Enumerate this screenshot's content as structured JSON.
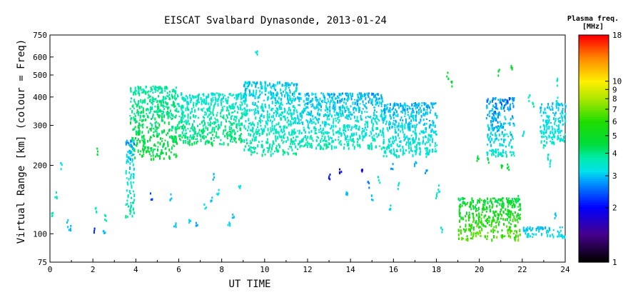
{
  "chart_data": {
    "type": "scatter",
    "title": "EISCAT Svalbard Dynasonde, 2013-01-24",
    "xlabel": "UT TIME",
    "ylabel": "Virtual Range [km] (colour = Freq)",
    "xlim": [
      0,
      24
    ],
    "ylim": [
      75,
      750
    ],
    "y_scale": "log",
    "x_ticks": [
      0,
      2,
      4,
      6,
      8,
      10,
      12,
      14,
      16,
      18,
      20,
      22,
      24
    ],
    "x_tick_labels": [
      "0",
      "2",
      "4",
      "6",
      "8",
      "10",
      "12",
      "14",
      "16",
      "18",
      "20",
      "22",
      "24"
    ],
    "y_ticks": [
      75,
      100,
      200,
      300,
      400,
      500,
      600,
      750
    ],
    "y_tick_labels": [
      "75",
      "100",
      "200",
      "300",
      "400",
      "500",
      "600",
      "750"
    ],
    "colorbar": {
      "title_line1": "Plasma freq.",
      "title_line2": "[MHz]",
      "scale": "log",
      "range": [
        1,
        18
      ],
      "ticks": [
        1,
        2,
        3,
        4,
        5,
        6,
        7,
        8,
        9,
        10,
        18
      ],
      "tick_labels": [
        "1",
        "2",
        "3",
        "4",
        "5",
        "6",
        "7",
        "8",
        "9",
        "10",
        "18"
      ]
    },
    "regions": [
      {
        "t0": 3.7,
        "t1": 5.9,
        "h_lo": 215,
        "h_hi": 450,
        "f_lo": 3.4,
        "f_hi": 5.0
      },
      {
        "t0": 5.9,
        "t1": 9.0,
        "h_lo": 250,
        "h_hi": 420,
        "f_lo": 3.0,
        "f_hi": 4.6
      },
      {
        "t0": 9.0,
        "t1": 11.5,
        "h_lo": 225,
        "h_hi": 470,
        "f_lo": 2.7,
        "f_hi": 4.2
      },
      {
        "t0": 11.5,
        "t1": 15.5,
        "h_lo": 240,
        "h_hi": 420,
        "f_lo": 2.6,
        "f_hi": 4.0
      },
      {
        "t0": 15.5,
        "t1": 18.0,
        "h_lo": 220,
        "h_hi": 380,
        "f_lo": 2.6,
        "f_hi": 3.8
      },
      {
        "t0": 20.3,
        "t1": 21.6,
        "h_lo": 220,
        "h_hi": 400,
        "f_lo": 2.2,
        "f_hi": 3.9
      },
      {
        "t0": 22.8,
        "t1": 24.0,
        "h_lo": 250,
        "h_hi": 380,
        "f_lo": 2.8,
        "f_hi": 3.6
      },
      {
        "t0": 3.5,
        "t1": 3.9,
        "h_lo": 120,
        "h_hi": 260,
        "f_lo": 2.5,
        "f_hi": 4.3
      },
      {
        "t0": 19.0,
        "t1": 21.9,
        "h_lo": 95,
        "h_hi": 145,
        "f_lo": 3.8,
        "f_hi": 7.5
      },
      {
        "t0": 22.0,
        "t1": 24.0,
        "h_lo": 97,
        "h_hi": 108,
        "f_lo": 2.8,
        "f_hi": 3.4
      }
    ],
    "sporadic_points": [
      {
        "t": 0.1,
        "h": 125,
        "f": 3.6
      },
      {
        "t": 0.25,
        "h": 150,
        "f": 3.5
      },
      {
        "t": 0.5,
        "h": 200,
        "f": 3.2
      },
      {
        "t": 0.8,
        "h": 112,
        "f": 3.0
      },
      {
        "t": 0.9,
        "h": 108,
        "f": 2.9
      },
      {
        "t": 2.0,
        "h": 105,
        "f": 2.2
      },
      {
        "t": 2.1,
        "h": 130,
        "f": 3.6
      },
      {
        "t": 2.2,
        "h": 232,
        "f": 4.5
      },
      {
        "t": 2.5,
        "h": 105,
        "f": 3.0
      },
      {
        "t": 2.55,
        "h": 118,
        "f": 3.8
      },
      {
        "t": 4.7,
        "h": 148,
        "f": 2.3
      },
      {
        "t": 5.6,
        "h": 147,
        "f": 3.0
      },
      {
        "t": 5.8,
        "h": 110,
        "f": 3.0
      },
      {
        "t": 6.5,
        "h": 115,
        "f": 3.1
      },
      {
        "t": 6.8,
        "h": 112,
        "f": 2.8
      },
      {
        "t": 7.2,
        "h": 135,
        "f": 3.2
      },
      {
        "t": 7.5,
        "h": 145,
        "f": 3.0
      },
      {
        "t": 7.8,
        "h": 155,
        "f": 3.2
      },
      {
        "t": 7.6,
        "h": 180,
        "f": 2.9
      },
      {
        "t": 8.5,
        "h": 120,
        "f": 3.0
      },
      {
        "t": 8.8,
        "h": 160,
        "f": 3.2
      },
      {
        "t": 8.3,
        "h": 110,
        "f": 3.1
      },
      {
        "t": 9.6,
        "h": 640,
        "f": 3.3
      },
      {
        "t": 13.0,
        "h": 182,
        "f": 2.1
      },
      {
        "t": 13.5,
        "h": 190,
        "f": 2.0
      },
      {
        "t": 13.8,
        "h": 150,
        "f": 3.0
      },
      {
        "t": 14.5,
        "h": 190,
        "f": 1.9
      },
      {
        "t": 14.8,
        "h": 165,
        "f": 2.6
      },
      {
        "t": 15.0,
        "h": 145,
        "f": 3.0
      },
      {
        "t": 15.3,
        "h": 175,
        "f": 3.6
      },
      {
        "t": 15.8,
        "h": 130,
        "f": 3.1
      },
      {
        "t": 15.9,
        "h": 200,
        "f": 2.8
      },
      {
        "t": 16.2,
        "h": 165,
        "f": 3.5
      },
      {
        "t": 17.0,
        "h": 205,
        "f": 2.9
      },
      {
        "t": 17.5,
        "h": 190,
        "f": 2.8
      },
      {
        "t": 18.0,
        "h": 150,
        "f": 3.6
      },
      {
        "t": 18.1,
        "h": 160,
        "f": 3.4
      },
      {
        "t": 18.5,
        "h": 500,
        "f": 4.6
      },
      {
        "t": 18.7,
        "h": 465,
        "f": 4.7
      },
      {
        "t": 18.2,
        "h": 105,
        "f": 3.4
      },
      {
        "t": 19.9,
        "h": 215,
        "f": 4.6
      },
      {
        "t": 20.4,
        "h": 210,
        "f": 4.4
      },
      {
        "t": 21.0,
        "h": 202,
        "f": 4.7
      },
      {
        "t": 21.3,
        "h": 200,
        "f": 4.5
      },
      {
        "t": 20.9,
        "h": 520,
        "f": 4.6
      },
      {
        "t": 21.5,
        "h": 540,
        "f": 4.9
      },
      {
        "t": 21.8,
        "h": 145,
        "f": 4.3
      },
      {
        "t": 22.0,
        "h": 280,
        "f": 3.2
      },
      {
        "t": 22.3,
        "h": 400,
        "f": 3.5
      },
      {
        "t": 22.5,
        "h": 370,
        "f": 3.8
      },
      {
        "t": 23.0,
        "h": 250,
        "f": 3.6
      },
      {
        "t": 23.2,
        "h": 220,
        "f": 3.4
      },
      {
        "t": 23.3,
        "h": 205,
        "f": 3.3
      },
      {
        "t": 23.6,
        "h": 470,
        "f": 3.6
      },
      {
        "t": 23.6,
        "h": 390,
        "f": 3.5
      },
      {
        "t": 23.5,
        "h": 120,
        "f": 3.0
      }
    ]
  }
}
